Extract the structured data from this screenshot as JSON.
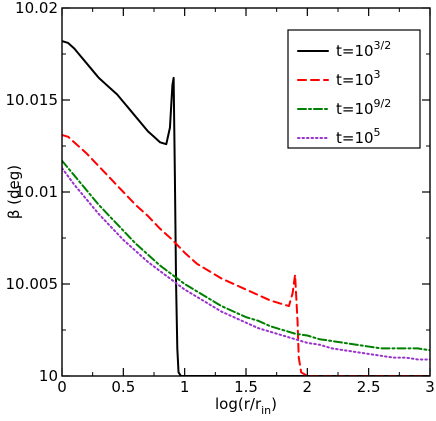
{
  "chart_data": {
    "type": "line",
    "xlabel": {
      "main": "log(r/r",
      "sub": "in",
      "end": ")"
    },
    "ylabel": "β (deg)",
    "xlim": [
      0,
      3
    ],
    "ylim": [
      10,
      10.02
    ],
    "xticks": [
      "0",
      "0.5",
      "1",
      "1.5",
      "2",
      "2.5",
      "3"
    ],
    "yticks": [
      "10",
      "10.005",
      "10.01",
      "10.015",
      "10.02"
    ],
    "grid": false,
    "legend_position": "top-right",
    "series": [
      {
        "name": "t=10^{3/2}",
        "legend_base": "t=10",
        "legend_exp": "3/2",
        "color": "#000000",
        "line_style": "solid",
        "x": [
          0,
          0.05,
          0.1,
          0.15,
          0.2,
          0.25,
          0.3,
          0.35,
          0.4,
          0.45,
          0.5,
          0.55,
          0.6,
          0.65,
          0.7,
          0.75,
          0.8,
          0.85,
          0.88,
          0.9,
          0.91,
          0.92,
          0.93,
          0.94,
          0.95,
          0.97,
          1.0,
          1.1,
          1.3,
          1.6,
          2.0,
          2.5,
          3.0
        ],
        "y": [
          10.0182,
          10.0181,
          10.0178,
          10.0174,
          10.017,
          10.0166,
          10.0162,
          10.0159,
          10.0156,
          10.0153,
          10.0149,
          10.0145,
          10.0141,
          10.0137,
          10.0133,
          10.013,
          10.0127,
          10.0126,
          10.0135,
          10.0158,
          10.0162,
          10.011,
          10.005,
          10.0015,
          10.0002,
          10.0,
          10.0,
          10.0,
          10.0,
          10.0,
          10.0,
          10.0,
          10.0
        ]
      },
      {
        "name": "t=10^3",
        "legend_base": "t=10",
        "legend_exp": "3",
        "color": "#ff0000",
        "line_style": "dashed",
        "x": [
          0,
          0.05,
          0.1,
          0.2,
          0.3,
          0.4,
          0.5,
          0.6,
          0.7,
          0.8,
          0.9,
          1.0,
          1.1,
          1.2,
          1.3,
          1.4,
          1.5,
          1.6,
          1.7,
          1.8,
          1.85,
          1.88,
          1.9,
          1.92,
          1.93,
          1.95,
          2.0,
          2.2,
          2.5,
          3.0
        ],
        "y": [
          10.0131,
          10.013,
          10.0127,
          10.0121,
          10.0114,
          10.0107,
          10.01,
          10.0093,
          10.0087,
          10.008,
          10.0074,
          10.0067,
          10.0061,
          10.0057,
          10.0053,
          10.005,
          10.0047,
          10.0044,
          10.0041,
          10.0039,
          10.0038,
          10.0045,
          10.0055,
          10.003,
          10.001,
          10.0002,
          10.0,
          10.0,
          10.0,
          10.0
        ]
      },
      {
        "name": "t=10^{9/2}",
        "legend_base": "t=10",
        "legend_exp": "9/2",
        "color": "#008000",
        "line_style": "dash-dot",
        "x": [
          0,
          0.1,
          0.2,
          0.3,
          0.4,
          0.5,
          0.6,
          0.7,
          0.8,
          0.9,
          1.0,
          1.1,
          1.2,
          1.3,
          1.4,
          1.5,
          1.6,
          1.7,
          1.8,
          1.9,
          2.0,
          2.1,
          2.2,
          2.3,
          2.4,
          2.5,
          2.6,
          2.7,
          2.8,
          2.9,
          3.0
        ],
        "y": [
          10.0117,
          10.0109,
          10.0101,
          10.0093,
          10.0086,
          10.0079,
          10.0072,
          10.0066,
          10.006,
          10.0055,
          10.005,
          10.0046,
          10.0042,
          10.0038,
          10.0035,
          10.0032,
          10.003,
          10.0027,
          10.0025,
          10.0023,
          10.0022,
          10.002,
          10.0019,
          10.0018,
          10.0017,
          10.0016,
          10.0015,
          10.0015,
          10.0015,
          10.0015,
          10.0014
        ]
      },
      {
        "name": "t=10^5",
        "legend_base": "t=10",
        "legend_exp": "5",
        "color": "#9932cc",
        "line_style": "dotted",
        "x": [
          0,
          0.1,
          0.2,
          0.3,
          0.4,
          0.5,
          0.6,
          0.7,
          0.8,
          0.9,
          1.0,
          1.1,
          1.2,
          1.3,
          1.4,
          1.5,
          1.6,
          1.7,
          1.8,
          1.9,
          2.0,
          2.1,
          2.2,
          2.3,
          2.4,
          2.5,
          2.6,
          2.7,
          2.8,
          2.9,
          3.0
        ],
        "y": [
          10.0113,
          10.0104,
          10.0096,
          10.0088,
          10.0081,
          10.0074,
          10.0068,
          10.0062,
          10.0057,
          10.0052,
          10.0047,
          10.0043,
          10.0039,
          10.0035,
          10.0032,
          10.0029,
          10.0026,
          10.0024,
          10.0022,
          10.002,
          10.0018,
          10.0017,
          10.0015,
          10.0014,
          10.0013,
          10.0012,
          10.0011,
          10.001,
          10.001,
          10.0009,
          10.0009
        ]
      }
    ]
  }
}
